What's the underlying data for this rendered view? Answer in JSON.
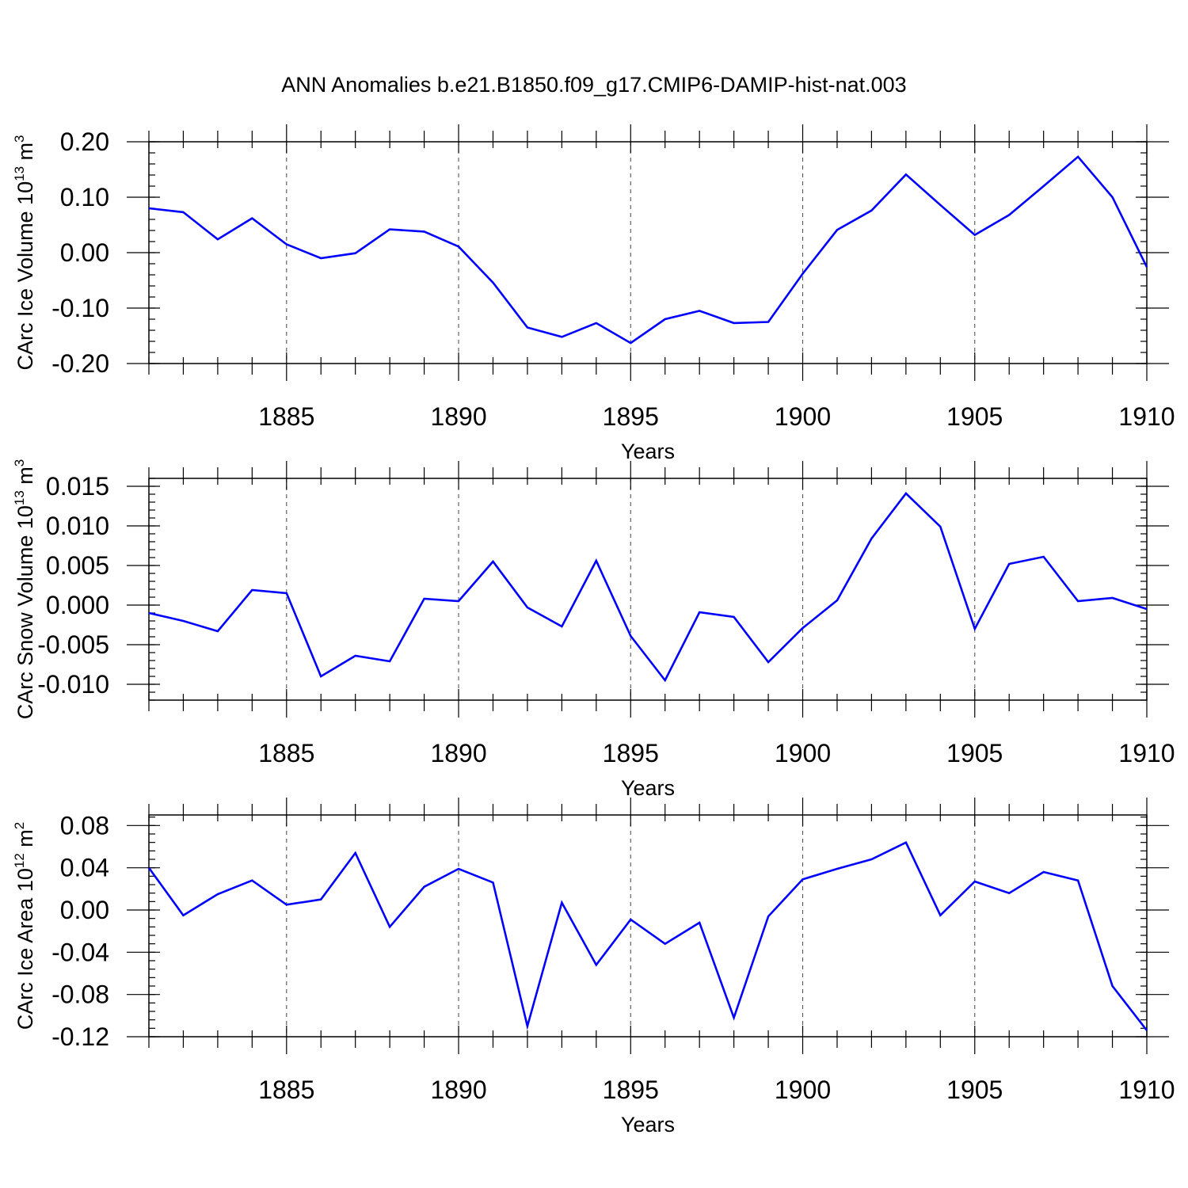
{
  "figure": {
    "title": "ANN Anomalies b.e21.B1850.f09_g17.CMIP6-DAMIP-hist-nat.003"
  },
  "colors": {
    "line": "#0000ff",
    "frame": "#000000",
    "grid": "#555555"
  },
  "chart_data": [
    {
      "type": "line",
      "title": "",
      "xlabel": "Years",
      "ylabel": "CArc Ice Volume 10",
      "ylabel_exponent": "13",
      "ylabel_unit": " m",
      "ylabel_unit_exponent": "3",
      "xlim": [
        1881,
        1910
      ],
      "ylim": [
        -0.2,
        0.2
      ],
      "xticks": [
        1885,
        1890,
        1895,
        1900,
        1905,
        1910
      ],
      "xtick_labels": [
        "1885",
        "1890",
        "1895",
        "1900",
        "1905",
        "1910"
      ],
      "yticks": [
        0.2,
        0.1,
        0.0,
        -0.1,
        -0.2
      ],
      "ytick_labels": [
        "0.20",
        "0.10",
        "0.00",
        "-0.10",
        "-0.20"
      ],
      "grid": "vertical dashed at major x ticks",
      "x": [
        1881,
        1882,
        1883,
        1884,
        1885,
        1886,
        1887,
        1888,
        1889,
        1890,
        1891,
        1892,
        1893,
        1894,
        1895,
        1896,
        1897,
        1898,
        1899,
        1900,
        1901,
        1902,
        1903,
        1904,
        1905,
        1906,
        1907,
        1908,
        1909,
        1910
      ],
      "series": [
        {
          "values": [
            0.08,
            0.073,
            0.024,
            0.062,
            0.015,
            -0.01,
            -0.001,
            0.042,
            0.038,
            0.011,
            -0.054,
            -0.135,
            -0.152,
            -0.127,
            -0.163,
            -0.12,
            -0.105,
            -0.127,
            -0.125,
            -0.038,
            0.041,
            0.076,
            0.141,
            0.086,
            0.032,
            0.068,
            0.12,
            0.173,
            0.1,
            -0.026
          ]
        }
      ]
    },
    {
      "type": "line",
      "title": "",
      "xlabel": "Years",
      "ylabel": "CArc Snow Volume 10",
      "ylabel_exponent": "13",
      "ylabel_unit": " m",
      "ylabel_unit_exponent": "3",
      "xlim": [
        1881,
        1910
      ],
      "ylim": [
        -0.012,
        0.016
      ],
      "xticks": [
        1885,
        1890,
        1895,
        1900,
        1905,
        1910
      ],
      "xtick_labels": [
        "1885",
        "1890",
        "1895",
        "1900",
        "1905",
        "1910"
      ],
      "yticks": [
        0.015,
        0.01,
        0.005,
        0.0,
        -0.005,
        -0.01
      ],
      "ytick_labels": [
        "0.015",
        "0.010",
        "0.005",
        "0.000",
        "-0.005",
        "-0.010"
      ],
      "grid": "vertical dashed at major x ticks",
      "x": [
        1881,
        1882,
        1883,
        1884,
        1885,
        1886,
        1887,
        1888,
        1889,
        1890,
        1891,
        1892,
        1893,
        1894,
        1895,
        1896,
        1897,
        1898,
        1899,
        1900,
        1901,
        1902,
        1903,
        1904,
        1905,
        1906,
        1907,
        1908,
        1909,
        1910
      ],
      "series": [
        {
          "values": [
            -0.001,
            -0.002,
            -0.0033,
            0.0019,
            0.0015,
            -0.009,
            -0.0064,
            -0.0071,
            0.0008,
            0.0005,
            0.0055,
            -0.0003,
            -0.0027,
            0.0056,
            -0.0039,
            -0.0095,
            -0.0009,
            -0.0015,
            -0.0072,
            -0.0029,
            0.0006,
            0.0084,
            0.0141,
            0.0099,
            -0.003,
            0.0052,
            0.0061,
            0.0005,
            0.0009,
            -0.0005
          ]
        }
      ]
    },
    {
      "type": "line",
      "title": "",
      "xlabel": "Years",
      "ylabel": "CArc Ice Area 10",
      "ylabel_exponent": "12",
      "ylabel_unit": " m",
      "ylabel_unit_exponent": "2",
      "xlim": [
        1881,
        1910
      ],
      "ylim": [
        -0.12,
        0.09
      ],
      "xticks": [
        1885,
        1890,
        1895,
        1900,
        1905,
        1910
      ],
      "xtick_labels": [
        "1885",
        "1890",
        "1895",
        "1900",
        "1905",
        "1910"
      ],
      "yticks": [
        0.08,
        0.04,
        0.0,
        -0.04,
        -0.08,
        -0.12
      ],
      "ytick_labels": [
        "0.08",
        "0.04",
        "0.00",
        "-0.04",
        "-0.08",
        "-0.12"
      ],
      "grid": "vertical dashed at major x ticks",
      "x": [
        1881,
        1882,
        1883,
        1884,
        1885,
        1886,
        1887,
        1888,
        1889,
        1890,
        1891,
        1892,
        1893,
        1894,
        1895,
        1896,
        1897,
        1898,
        1899,
        1900,
        1901,
        1902,
        1903,
        1904,
        1905,
        1906,
        1907,
        1908,
        1909,
        1910
      ],
      "series": [
        {
          "values": [
            0.04,
            -0.005,
            0.015,
            0.028,
            0.005,
            0.01,
            0.054,
            -0.016,
            0.022,
            0.039,
            0.026,
            -0.11,
            0.007,
            -0.052,
            -0.009,
            -0.032,
            -0.012,
            -0.102,
            -0.006,
            0.029,
            0.039,
            0.048,
            0.064,
            -0.005,
            0.027,
            0.016,
            0.036,
            0.028,
            -0.072,
            -0.114
          ]
        }
      ]
    }
  ]
}
